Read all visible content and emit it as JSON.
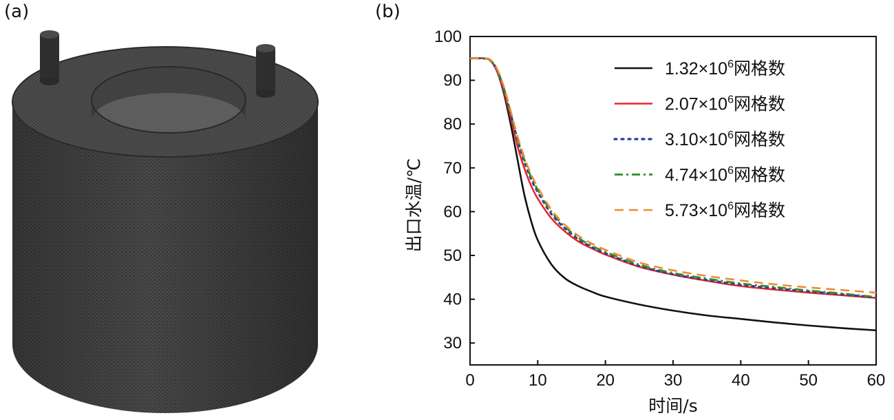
{
  "panels": {
    "a_label": "(a)",
    "b_label": "(b)"
  },
  "colors": {
    "series_1": "#111111",
    "series_2": "#e8262b",
    "series_3": "#2b3aa0",
    "series_4": "#2e8b2e",
    "series_5": "#f08a30",
    "mesh_dark": "#3a3a3a",
    "mesh_mid": "#4f4f4f"
  },
  "chart_data": {
    "type": "line",
    "title": "",
    "xlabel": "时间/s",
    "ylabel": "出口水温/℃",
    "xlim": [
      0,
      60
    ],
    "ylim": [
      25,
      100
    ],
    "xticks": [
      "0",
      "10",
      "20",
      "30",
      "40",
      "50",
      "60"
    ],
    "yticks": [
      "30",
      "40",
      "50",
      "60",
      "70",
      "80",
      "90",
      "100"
    ],
    "legend_position": "top-right",
    "x": [
      0,
      2,
      3,
      4,
      5,
      6,
      7,
      8,
      9,
      10,
      12,
      14,
      16,
      18,
      20,
      25,
      30,
      35,
      40,
      45,
      50,
      55,
      60
    ],
    "series": [
      {
        "name": "1.32×10⁶网格数",
        "mantissa": "1.32",
        "exp": "6",
        "suffix": "网格数",
        "style": "solid",
        "values": [
          95,
          95,
          94.5,
          92,
          87,
          80,
          72,
          64,
          58,
          53.5,
          48,
          44.8,
          43,
          41.7,
          40.6,
          38.8,
          37.4,
          36.3,
          35.5,
          34.7,
          34.0,
          33.4,
          32.9
        ]
      },
      {
        "name": "2.07×10⁶网格数",
        "mantissa": "2.07",
        "exp": "6",
        "suffix": "网格数",
        "style": "solid",
        "values": [
          95,
          95,
          94.5,
          92,
          87.5,
          81.5,
          75,
          70,
          66,
          63,
          58.5,
          55.5,
          53.2,
          51.6,
          50.2,
          47.4,
          45.6,
          44.2,
          43.0,
          42.2,
          41.5,
          40.9,
          40.3
        ]
      },
      {
        "name": "3.10×10⁶网格数",
        "mantissa": "3.10",
        "exp": "6",
        "suffix": "网格数",
        "style": "dotted",
        "values": [
          95,
          95,
          94.6,
          92.3,
          88,
          82.3,
          76.5,
          71.5,
          67.5,
          64.5,
          59.5,
          56.2,
          53.7,
          51.9,
          50.5,
          47.6,
          45.7,
          44.4,
          43.3,
          42.5,
          41.8,
          41.1,
          40.4
        ]
      },
      {
        "name": "4.74×10⁶网格数",
        "mantissa": "4.74",
        "exp": "6",
        "suffix": "网格数",
        "style": "dashdot",
        "values": [
          95,
          95,
          94.6,
          92.4,
          88.2,
          82.6,
          76.8,
          72,
          68,
          65,
          60,
          56.6,
          54.0,
          52.2,
          50.8,
          47.9,
          46.0,
          44.7,
          43.6,
          42.8,
          42.0,
          41.3,
          40.5
        ]
      },
      {
        "name": "5.73×10⁶网格数",
        "mantissa": "5.73",
        "exp": "6",
        "suffix": "网格数",
        "style": "dashed",
        "values": [
          95,
          95,
          94.7,
          92.6,
          88.5,
          83,
          77.3,
          72.5,
          68.6,
          65.6,
          60.5,
          57.0,
          54.5,
          52.7,
          51.3,
          48.4,
          46.6,
          45.3,
          44.3,
          43.4,
          42.7,
          42.1,
          41.5
        ]
      }
    ]
  }
}
